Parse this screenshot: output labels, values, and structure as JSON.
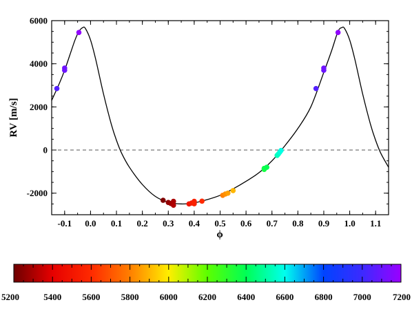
{
  "chart_data": [
    {
      "type": "scatter",
      "title": "",
      "xlabel": "ϕ",
      "ylabel": "RV [m/s]",
      "xlim": [
        -0.15,
        1.15
      ],
      "ylim": [
        -3000,
        6000
      ],
      "xticks": [
        "-0.1",
        "0.0",
        "0.1",
        "0.2",
        "0.3",
        "0.4",
        "0.5",
        "0.6",
        "0.7",
        "0.8",
        "0.9",
        "1.0",
        "1.1"
      ],
      "yticks": [
        "-2000",
        "0",
        "2000",
        "4000",
        "6000"
      ],
      "zero_line": {
        "y": 0,
        "style": "dashed"
      },
      "model_curve": {
        "color": "#000000",
        "points": [
          [
            -0.15,
            2300
          ],
          [
            -0.12,
            3100
          ],
          [
            -0.1,
            3700
          ],
          [
            -0.08,
            4400
          ],
          [
            -0.06,
            5100
          ],
          [
            -0.045,
            5500
          ],
          [
            -0.03,
            5680
          ],
          [
            -0.02,
            5640
          ],
          [
            0.0,
            5100
          ],
          [
            0.02,
            4200
          ],
          [
            0.05,
            2600
          ],
          [
            0.08,
            1200
          ],
          [
            0.1,
            450
          ],
          [
            0.12,
            -150
          ],
          [
            0.15,
            -800
          ],
          [
            0.2,
            -1600
          ],
          [
            0.25,
            -2150
          ],
          [
            0.3,
            -2420
          ],
          [
            0.35,
            -2500
          ],
          [
            0.4,
            -2450
          ],
          [
            0.45,
            -2300
          ],
          [
            0.5,
            -2100
          ],
          [
            0.55,
            -1800
          ],
          [
            0.6,
            -1450
          ],
          [
            0.65,
            -1050
          ],
          [
            0.7,
            -500
          ],
          [
            0.75,
            200
          ],
          [
            0.8,
            1000
          ],
          [
            0.85,
            2000
          ],
          [
            0.9,
            3600
          ],
          [
            0.93,
            4600
          ],
          [
            0.955,
            5500
          ],
          [
            0.97,
            5680
          ],
          [
            0.98,
            5640
          ],
          [
            1.0,
            5100
          ],
          [
            1.02,
            4200
          ],
          [
            1.05,
            2600
          ],
          [
            1.08,
            1200
          ],
          [
            1.1,
            450
          ],
          [
            1.12,
            -150
          ],
          [
            1.15,
            -800
          ]
        ]
      },
      "series": [
        {
          "values": [
            {
              "x": 0.28,
              "y": -2330,
              "c": 5230
            },
            {
              "x": 0.3,
              "y": -2430,
              "c": 5260
            },
            {
              "x": 0.31,
              "y": -2480,
              "c": 5280
            },
            {
              "x": 0.32,
              "y": -2380,
              "c": 5300
            },
            {
              "x": 0.32,
              "y": -2560,
              "c": 5310
            },
            {
              "x": 0.38,
              "y": -2500,
              "c": 5500
            },
            {
              "x": 0.39,
              "y": -2460,
              "c": 5530
            },
            {
              "x": 0.4,
              "y": -2380,
              "c": 5550
            },
            {
              "x": 0.4,
              "y": -2490,
              "c": 5560
            },
            {
              "x": 0.43,
              "y": -2370,
              "c": 5600
            },
            {
              "x": 0.51,
              "y": -2100,
              "c": 5800
            },
            {
              "x": 0.52,
              "y": -2040,
              "c": 5830
            },
            {
              "x": 0.53,
              "y": -2000,
              "c": 5860
            },
            {
              "x": 0.55,
              "y": -1880,
              "c": 5900
            },
            {
              "x": 0.67,
              "y": -900,
              "c": 6350
            },
            {
              "x": 0.67,
              "y": -850,
              "c": 6370
            },
            {
              "x": 0.68,
              "y": -800,
              "c": 6390
            },
            {
              "x": 0.72,
              "y": -250,
              "c": 6530
            },
            {
              "x": 0.725,
              "y": -180,
              "c": 6550
            },
            {
              "x": 0.73,
              "y": -100,
              "c": 6570
            },
            {
              "x": 0.735,
              "y": -20,
              "c": 6590
            },
            {
              "x": 0.87,
              "y": 2850,
              "c": 7050
            },
            {
              "x": 0.9,
              "y": 3700,
              "c": 7100
            },
            {
              "x": 0.9,
              "y": 3800,
              "c": 7110
            },
            {
              "x": 0.955,
              "y": 5450,
              "c": 7180
            },
            {
              "x": -0.13,
              "y": 2850,
              "c": 7050
            },
            {
              "x": -0.1,
              "y": 3700,
              "c": 7100
            },
            {
              "x": -0.1,
              "y": 3800,
              "c": 7110
            },
            {
              "x": -0.045,
              "y": 5450,
              "c": 7180
            }
          ]
        }
      ]
    },
    {
      "type": "colorbar",
      "range": [
        5200,
        7200
      ],
      "ticks": [
        "5200",
        "5400",
        "5600",
        "5800",
        "6000",
        "6200",
        "6400",
        "6600",
        "6800",
        "7000",
        "7200"
      ],
      "colormap": [
        [
          5200,
          "#6e0000"
        ],
        [
          5400,
          "#e60000"
        ],
        [
          5600,
          "#ff2a00"
        ],
        [
          5800,
          "#ff7f00"
        ],
        [
          6000,
          "#ffee00"
        ],
        [
          6200,
          "#5cff00"
        ],
        [
          6400,
          "#00ff55"
        ],
        [
          6600,
          "#00ffee"
        ],
        [
          6800,
          "#0044ff"
        ],
        [
          7000,
          "#3c2aff"
        ],
        [
          7200,
          "#9a00ff"
        ]
      ]
    }
  ]
}
